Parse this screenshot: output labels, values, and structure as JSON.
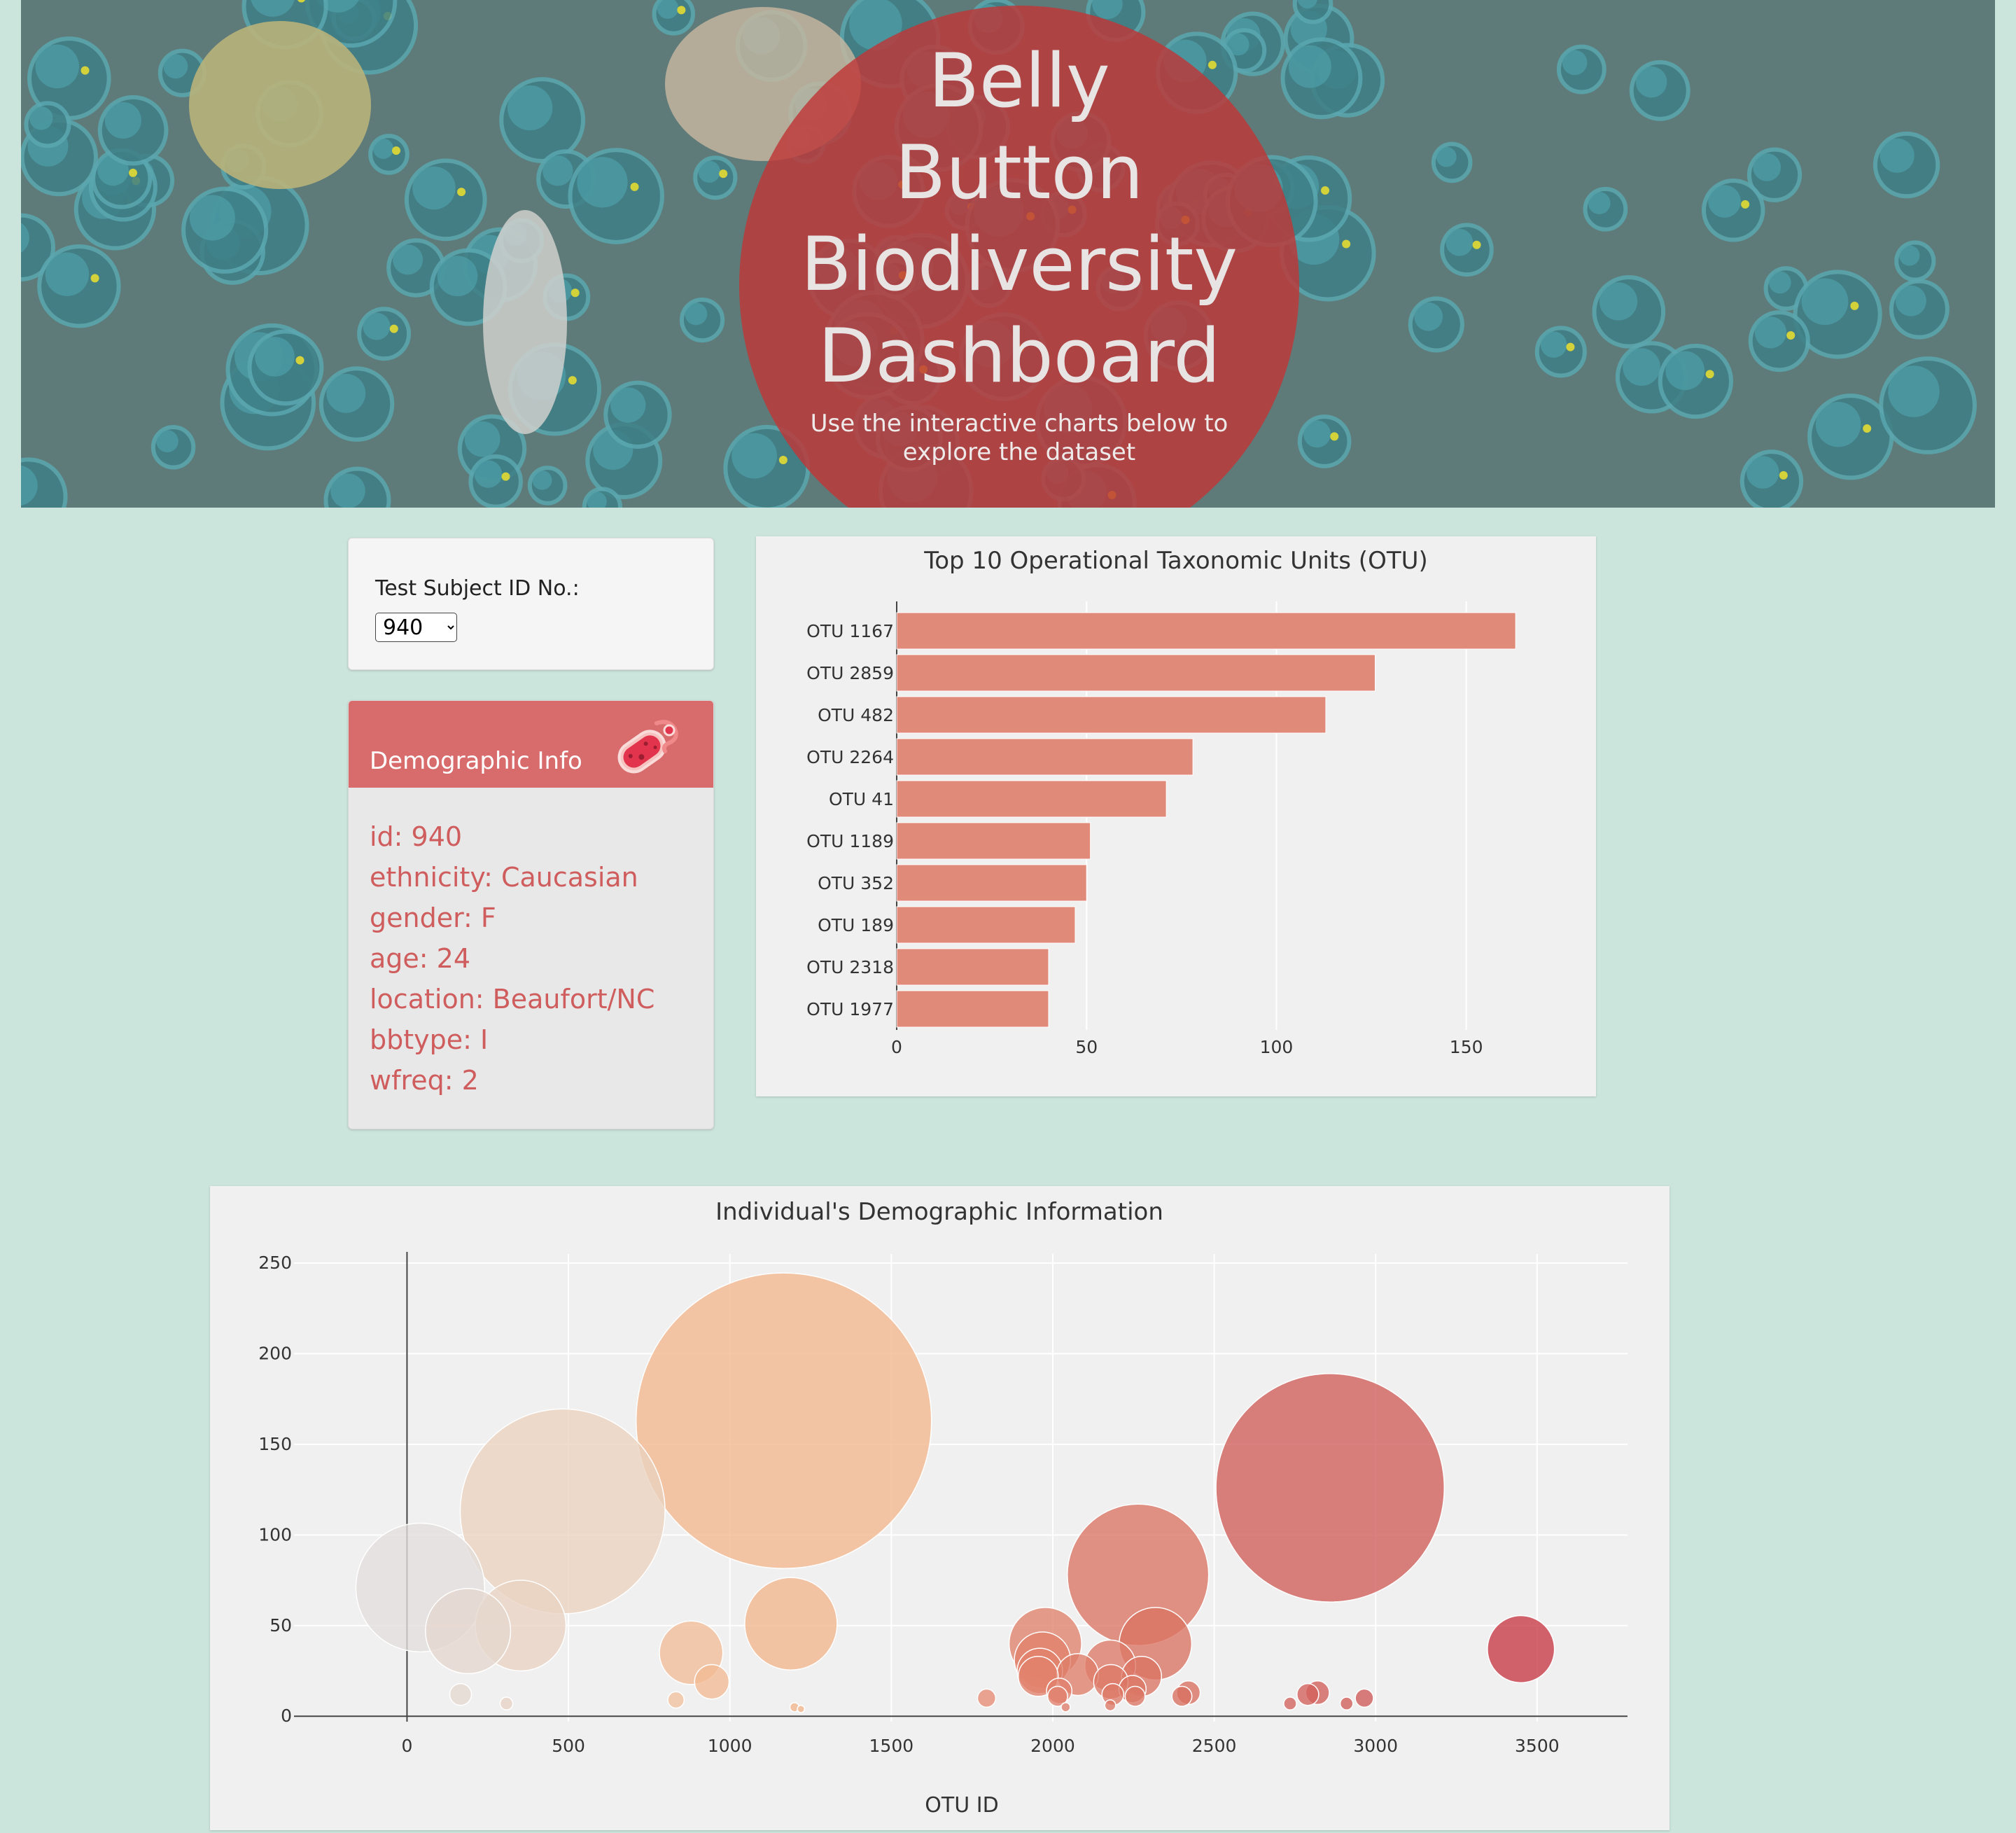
{
  "header": {
    "title_lines": [
      "Belly",
      "Button",
      "Biodiversity",
      "Dashboard"
    ],
    "subtitle": "Use the interactive charts below to explore the dataset"
  },
  "selector": {
    "label": "Test Subject ID No.:",
    "selected": "940"
  },
  "demographics": {
    "title": "Demographic Info",
    "icon": "microbe-icon",
    "items": [
      "id: 940",
      "ethnicity: Caucasian",
      "gender: F",
      "age: 24",
      "location: Beaufort/NC",
      "bbtype: I",
      "wfreq: 2"
    ]
  },
  "colors": {
    "page_bg": "#cce5dc",
    "accent_red": "#d86c6c",
    "bar_fill": "#e08a7a",
    "panel_bg": "#f0f0f0"
  },
  "chart_data": [
    {
      "type": "bar",
      "orientation": "horizontal",
      "title": "Top 10 Operational Taxonomic Units (OTU)",
      "categories": [
        "OTU 1167",
        "OTU 2859",
        "OTU 482",
        "OTU 2264",
        "OTU 41",
        "OTU 1189",
        "OTU 352",
        "OTU 189",
        "OTU 2318",
        "OTU 1977"
      ],
      "values": [
        163,
        126,
        113,
        78,
        71,
        51,
        50,
        47,
        40,
        40
      ],
      "xlim": [
        0,
        172
      ],
      "xticks": [
        0,
        50,
        100,
        150
      ],
      "grid": true
    },
    {
      "type": "scatter",
      "subtype": "bubble",
      "title": "Individual's Demographic Information",
      "xlabel": "OTU ID",
      "ylabel": "",
      "xlim": [
        -350,
        3780
      ],
      "ylim": [
        -3,
        255
      ],
      "xticks": [
        0,
        500,
        1000,
        1500,
        2000,
        2500,
        3000,
        3500
      ],
      "yticks": [
        0,
        50,
        100,
        150,
        200,
        250
      ],
      "grid": true,
      "colorscale": "earth",
      "points": [
        {
          "x": 41,
          "y": 71
        },
        {
          "x": 189,
          "y": 47
        },
        {
          "x": 352,
          "y": 50
        },
        {
          "x": 482,
          "y": 113
        },
        {
          "x": 166,
          "y": 12
        },
        {
          "x": 308,
          "y": 7
        },
        {
          "x": 880,
          "y": 35
        },
        {
          "x": 944,
          "y": 19
        },
        {
          "x": 833,
          "y": 9
        },
        {
          "x": 1167,
          "y": 163
        },
        {
          "x": 1189,
          "y": 51
        },
        {
          "x": 1200,
          "y": 5
        },
        {
          "x": 1220,
          "y": 4
        },
        {
          "x": 1795,
          "y": 10
        },
        {
          "x": 1977,
          "y": 40
        },
        {
          "x": 1968,
          "y": 31
        },
        {
          "x": 1960,
          "y": 25
        },
        {
          "x": 1955,
          "y": 22
        },
        {
          "x": 2077,
          "y": 23
        },
        {
          "x": 2020,
          "y": 14
        },
        {
          "x": 2015,
          "y": 11
        },
        {
          "x": 2040,
          "y": 5
        },
        {
          "x": 2178,
          "y": 28
        },
        {
          "x": 2180,
          "y": 19
        },
        {
          "x": 2186,
          "y": 12
        },
        {
          "x": 2178,
          "y": 6
        },
        {
          "x": 2264,
          "y": 78
        },
        {
          "x": 2318,
          "y": 40
        },
        {
          "x": 2275,
          "y": 22
        },
        {
          "x": 2247,
          "y": 15
        },
        {
          "x": 2255,
          "y": 11
        },
        {
          "x": 2400,
          "y": 11
        },
        {
          "x": 2420,
          "y": 13
        },
        {
          "x": 2735,
          "y": 7
        },
        {
          "x": 2790,
          "y": 12
        },
        {
          "x": 2820,
          "y": 13
        },
        {
          "x": 2910,
          "y": 7
        },
        {
          "x": 2965,
          "y": 10
        },
        {
          "x": 2859,
          "y": 126
        },
        {
          "x": 3450,
          "y": 37
        }
      ]
    }
  ]
}
